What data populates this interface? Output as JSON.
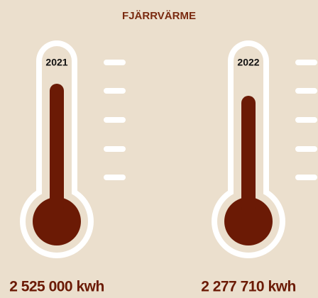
{
  "chart_data": {
    "type": "thermometer",
    "title": "FJÄRRVÄRME",
    "categories": [
      "2021",
      "2022"
    ],
    "values": [
      2525000,
      2277710
    ],
    "value_labels": [
      "2 525 000 kwh",
      "2 277 710 kwh"
    ],
    "color": "#6b1a05"
  }
}
